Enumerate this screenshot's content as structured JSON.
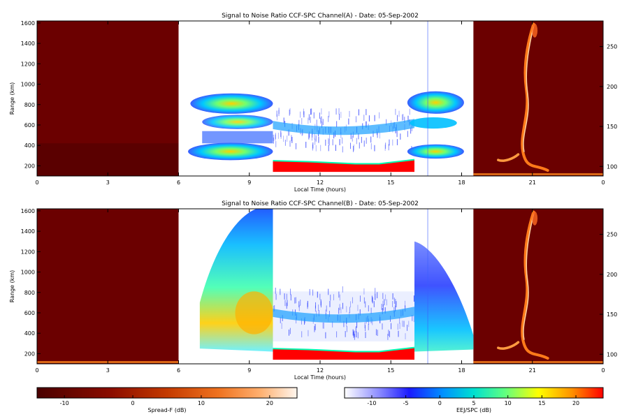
{
  "colors": {
    "spreadf_bg": "#6b0000",
    "eej_dense": "#ff0000",
    "accent_orange": "#ff8a1e",
    "white": "#ffffff"
  },
  "panels": [
    {
      "title": "Signal to Noise Ratio CCF-SPC Channel(A) - Date: 05-Sep-2002",
      "xlabel": "Local Time (hours)",
      "ylabel": "Range (km)"
    },
    {
      "title": "Signal to Noise Ratio CCF-SPC Channel(B) - Date: 05-Sep-2002",
      "xlabel": "Local Time (hours)",
      "ylabel": "Range (km)"
    }
  ],
  "colorbars": [
    {
      "label": "Spread-F (dB)",
      "ticks": [
        "-10",
        "0",
        "10",
        "20"
      ]
    },
    {
      "label": "EEJ/SPC (dB)",
      "ticks": [
        "-10",
        "-5",
        "0",
        "5",
        "10",
        "15",
        "20"
      ]
    }
  ],
  "chart_data": [
    {
      "type": "heatmap",
      "title": "Signal to Noise Ratio CCF-SPC Channel(A) - Date: 05-Sep-2002",
      "xlabel": "Local Time (hours)",
      "ylabel": "Range (km)",
      "x_ticks": [
        "0",
        "3",
        "6",
        "9",
        "12",
        "15",
        "18",
        "21",
        "0"
      ],
      "y_ticks": [
        "200",
        "400",
        "600",
        "800",
        "1000",
        "1200",
        "1400",
        "1600"
      ],
      "y_right_ticks": [
        "100",
        "150",
        "200",
        "250"
      ],
      "xlim": [
        0,
        24
      ],
      "ylim": [
        100,
        1620
      ],
      "y_right_lim": [
        88,
        282
      ],
      "night_segments": [
        [
          0,
          6
        ],
        [
          18.5,
          24
        ]
      ],
      "day_segments": [
        [
          6,
          10
        ],
        [
          10,
          16
        ],
        [
          16,
          18.5
        ]
      ]
    },
    {
      "type": "heatmap",
      "title": "Signal to Noise Ratio CCF-SPC Channel(B) - Date: 05-Sep-2002",
      "xlabel": "Local Time (hours)",
      "ylabel": "Range (km)",
      "x_ticks": [
        "0",
        "3",
        "6",
        "9",
        "12",
        "15",
        "18",
        "21",
        "0"
      ],
      "y_ticks": [
        "200",
        "400",
        "600",
        "800",
        "1000",
        "1200",
        "1400",
        "1600"
      ],
      "y_right_ticks": [
        "100",
        "150",
        "200",
        "250"
      ],
      "xlim": [
        0,
        24
      ],
      "ylim": [
        100,
        1620
      ],
      "y_right_lim": [
        88,
        282
      ],
      "night_segments": [
        [
          0,
          6
        ],
        [
          18.5,
          24
        ]
      ],
      "day_segments": [
        [
          6,
          10
        ],
        [
          10,
          16
        ],
        [
          16,
          18.5
        ]
      ]
    }
  ]
}
